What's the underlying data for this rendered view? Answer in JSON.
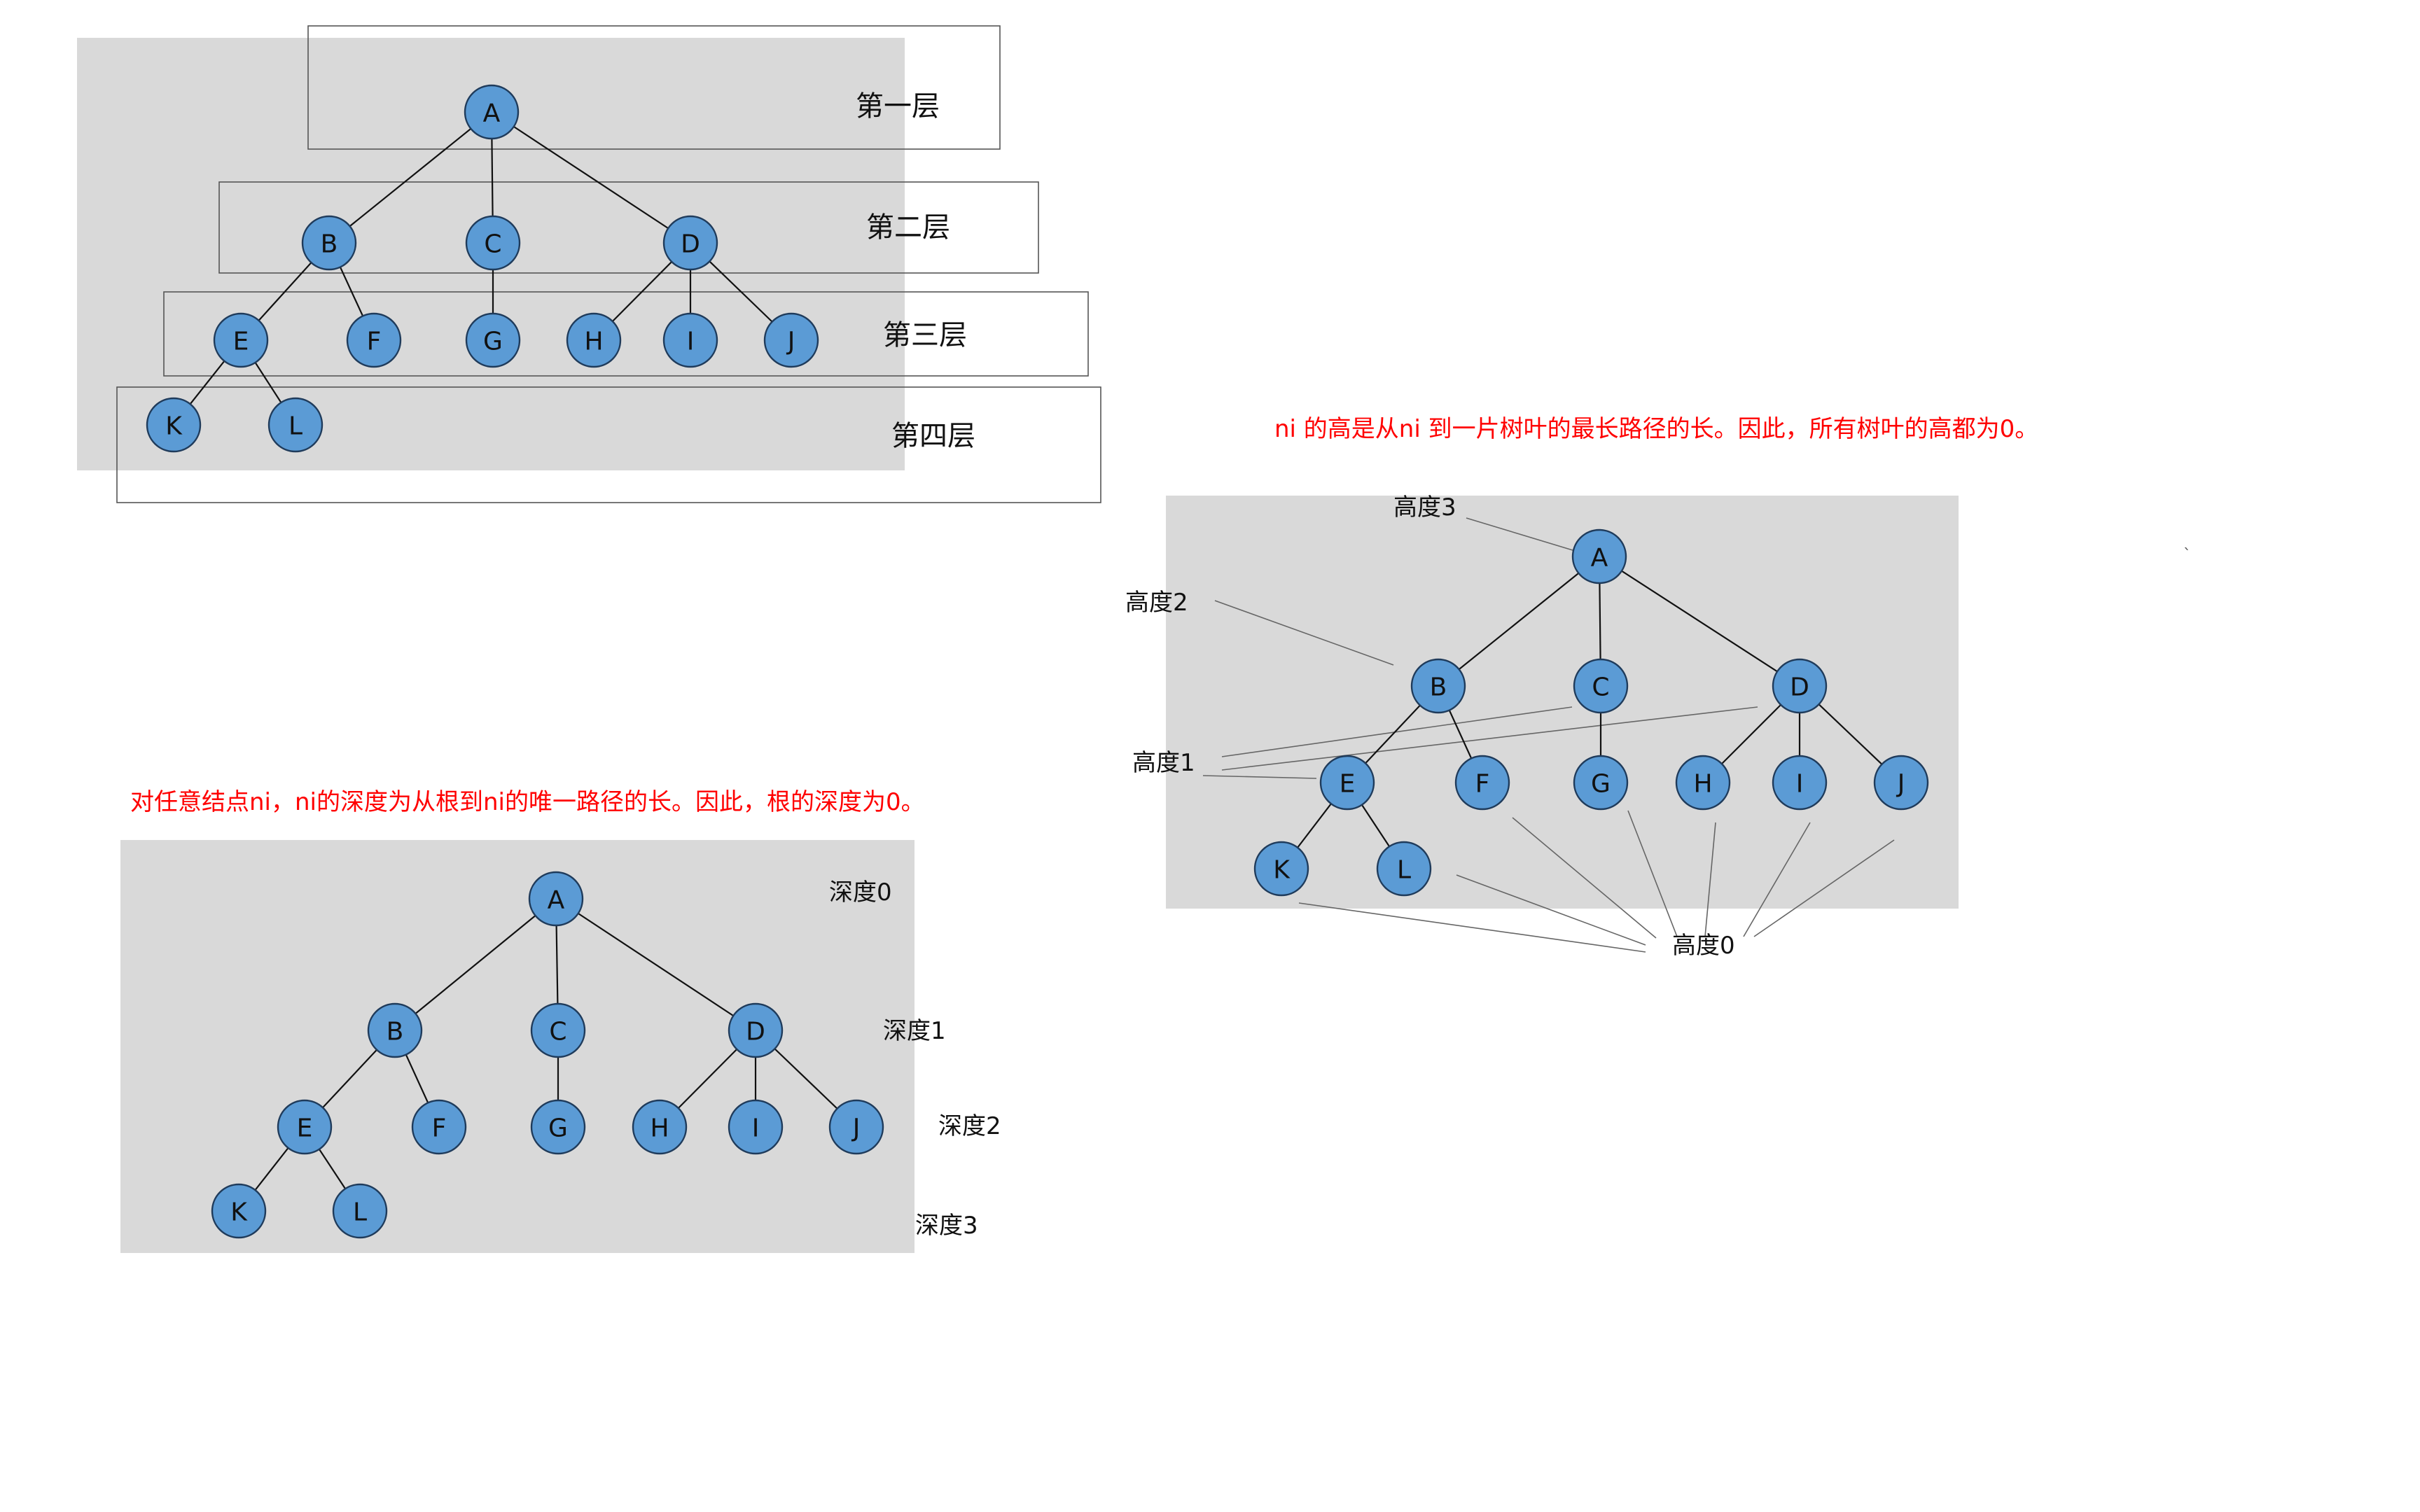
{
  "nodes": [
    "A",
    "B",
    "C",
    "D",
    "E",
    "F",
    "G",
    "H",
    "I",
    "J",
    "K",
    "L"
  ],
  "level_diagram": {
    "labels": [
      "第一层",
      "第二层",
      "第三层",
      "第四层"
    ]
  },
  "height_diagram": {
    "note": "ni 的高是从ni 到一片树叶的最长路径的长。因此，所有树叶的高都为0。",
    "labels": [
      "高度3",
      "高度2",
      "高度1",
      "高度0"
    ]
  },
  "depth_diagram": {
    "note": "对任意结点ni，ni的深度为从根到ni的唯一路径的长。因此，根的深度为0。",
    "labels": [
      "深度0",
      "深度1",
      "深度2",
      "深度3"
    ]
  },
  "stray_mark": "`"
}
